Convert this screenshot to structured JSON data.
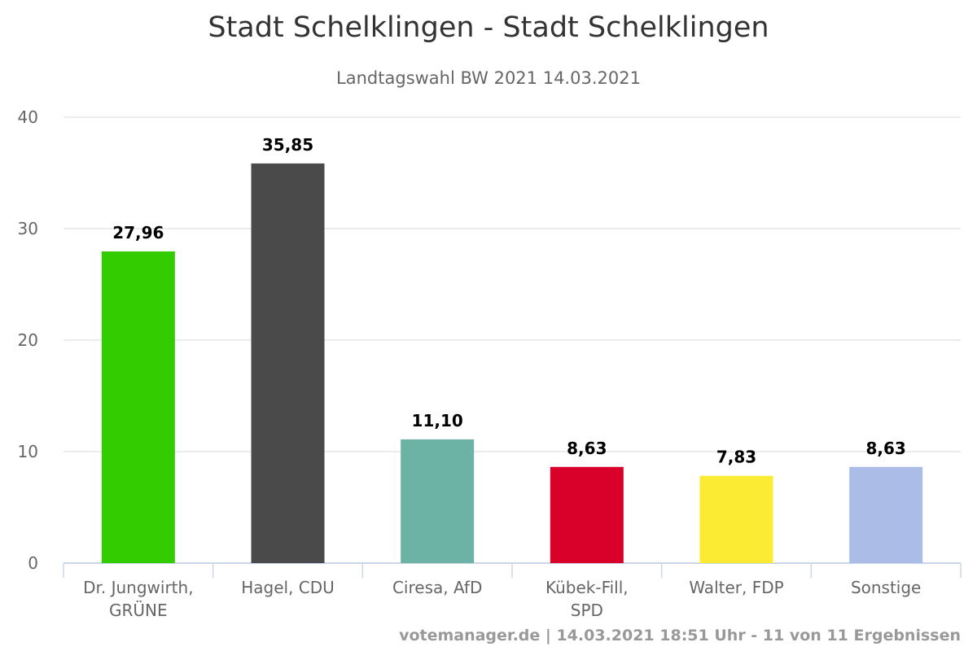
{
  "chart_data": {
    "type": "bar",
    "title": "Stadt Schelklingen - Stadt Schelklingen",
    "subtitle": "Landtagswahl BW 2021 14.03.2021",
    "categories": [
      [
        "Dr. Jungwirth,",
        "GRÜNE"
      ],
      [
        "Hagel, CDU"
      ],
      [
        "Ciresa, AfD"
      ],
      [
        "Kübek-Fill,",
        "SPD"
      ],
      [
        "Walter, FDP"
      ],
      [
        "Sonstige"
      ]
    ],
    "values": [
      27.96,
      35.85,
      11.1,
      8.63,
      7.83,
      8.63
    ],
    "data_labels": [
      "27,96",
      "35,85",
      "11,10",
      "8,63",
      "7,83",
      "8,63"
    ],
    "colors": [
      "#33cc00",
      "#4a4a4a",
      "#6db3a5",
      "#d9002a",
      "#fbeb33",
      "#abbde6"
    ],
    "ylim": [
      0,
      40
    ],
    "yticks": [
      0,
      10,
      20,
      30,
      40
    ],
    "grid": true,
    "xlabel": "",
    "ylabel": ""
  },
  "footer": "votemanager.de | 14.03.2021 18:51 Uhr - 11 von 11 Ergebnissen"
}
